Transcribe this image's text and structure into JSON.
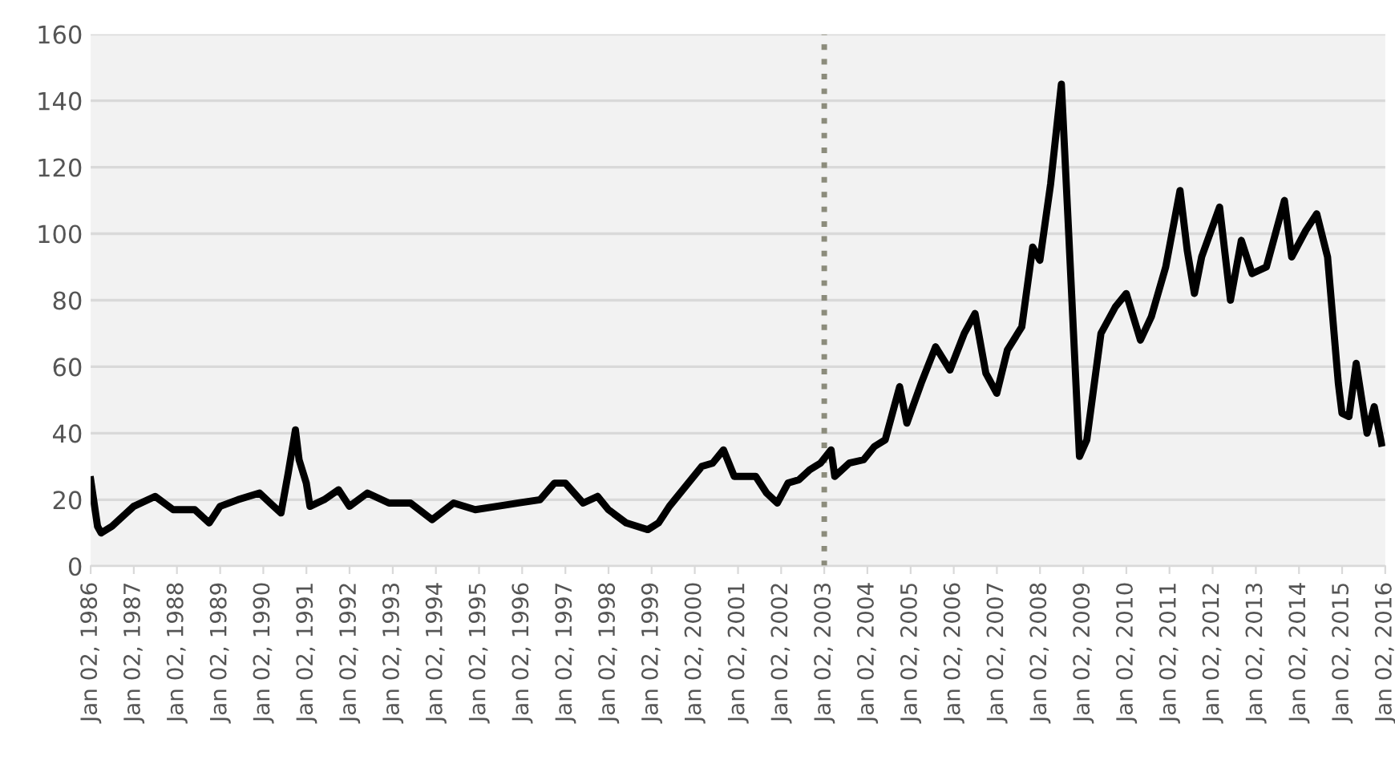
{
  "chart_data": {
    "type": "line",
    "ylim": [
      0,
      160
    ],
    "yticks": [
      0,
      20,
      40,
      60,
      80,
      100,
      120,
      140,
      160
    ],
    "xlim": [
      "1986-01-02",
      "2016-01-02"
    ],
    "xticks": [
      {
        "value": "1986-01-02",
        "label": "Jan 02, 1986"
      },
      {
        "value": "1987-01-02",
        "label": "Jan 02, 1987"
      },
      {
        "value": "1988-01-02",
        "label": "Jan 02, 1988"
      },
      {
        "value": "1989-01-02",
        "label": "Jan 02, 1989"
      },
      {
        "value": "1990-01-02",
        "label": "Jan 02, 1990"
      },
      {
        "value": "1991-01-02",
        "label": "Jan 02, 1991"
      },
      {
        "value": "1992-01-02",
        "label": "Jan 02, 1992"
      },
      {
        "value": "1993-01-02",
        "label": "Jan 02, 1993"
      },
      {
        "value": "1994-01-02",
        "label": "Jan 02, 1994"
      },
      {
        "value": "1995-01-02",
        "label": "Jan 02, 1995"
      },
      {
        "value": "1996-01-02",
        "label": "Jan 02, 1996"
      },
      {
        "value": "1997-01-02",
        "label": "Jan 02, 1997"
      },
      {
        "value": "1998-01-02",
        "label": "Jan 02, 1998"
      },
      {
        "value": "1999-01-02",
        "label": "Jan 02, 1999"
      },
      {
        "value": "2000-01-02",
        "label": "Jan 02, 2000"
      },
      {
        "value": "2001-01-02",
        "label": "Jan 02, 2001"
      },
      {
        "value": "2002-01-02",
        "label": "Jan 02, 2002"
      },
      {
        "value": "2003-01-02",
        "label": "Jan 02, 2003"
      },
      {
        "value": "2004-01-02",
        "label": "Jan 02, 2004"
      },
      {
        "value": "2005-01-02",
        "label": "Jan 02, 2005"
      },
      {
        "value": "2006-01-02",
        "label": "Jan 02, 2006"
      },
      {
        "value": "2007-01-02",
        "label": "Jan 02, 2007"
      },
      {
        "value": "2008-01-02",
        "label": "Jan 02, 2008"
      },
      {
        "value": "2009-01-02",
        "label": "Jan 02, 2009"
      },
      {
        "value": "2010-01-02",
        "label": "Jan 02, 2010"
      },
      {
        "value": "2011-01-02",
        "label": "Jan 02, 2011"
      },
      {
        "value": "2012-01-02",
        "label": "Jan 02, 2012"
      },
      {
        "value": "2013-01-02",
        "label": "Jan 02, 2013"
      },
      {
        "value": "2014-01-02",
        "label": "Jan 02, 2014"
      },
      {
        "value": "2015-01-02",
        "label": "Jan 02, 2015"
      },
      {
        "value": "2016-01-02",
        "label": "Jan 02, 2016"
      }
    ],
    "grid": "y",
    "legend": false,
    "marker": "none",
    "line_style": "solid",
    "ref_lines": [
      {
        "axis": "x",
        "value": "2003-01-02",
        "color": "#8c8c7c",
        "line_style": "dotted"
      }
    ],
    "series": [
      {
        "color": "#000000",
        "x": [
          "1986-01-02",
          "1986-03",
          "1986-04",
          "1986-07",
          "1986-10",
          "1987-01",
          "1987-07",
          "1987-12",
          "1988-06",
          "1988-10",
          "1989-01",
          "1989-06",
          "1989-12",
          "1990-03",
          "1990-06",
          "1990-08",
          "1990-10",
          "1990-11",
          "1991-01",
          "1991-02",
          "1991-06",
          "1991-10",
          "1992-01",
          "1992-06",
          "1992-12",
          "1993-06",
          "1993-12",
          "1994-06",
          "1994-12",
          "1995-06",
          "1995-12",
          "1996-06",
          "1996-10",
          "1997-01",
          "1997-06",
          "1997-10",
          "1998-01",
          "1998-06",
          "1998-12",
          "1999-03",
          "1999-06",
          "1999-12",
          "2000-03",
          "2000-06",
          "2000-09",
          "2000-12",
          "2001-03",
          "2001-06",
          "2001-09",
          "2001-12",
          "2002-03",
          "2002-06",
          "2002-09",
          "2002-12",
          "2003-03",
          "2003-04",
          "2003-08",
          "2003-12",
          "2004-03",
          "2004-06",
          "2004-10",
          "2004-12",
          "2005-04",
          "2005-08",
          "2005-12",
          "2006-04",
          "2006-07",
          "2006-10",
          "2007-01",
          "2007-04",
          "2007-08",
          "2007-11",
          "2008-01",
          "2008-04",
          "2008-07",
          "2008-09",
          "2008-12",
          "2009-02",
          "2009-06",
          "2009-10",
          "2010-01",
          "2010-05",
          "2010-08",
          "2010-12",
          "2011-04",
          "2011-06",
          "2011-08",
          "2011-10",
          "2012-03",
          "2012-06",
          "2012-09",
          "2012-12",
          "2013-04",
          "2013-09",
          "2013-11",
          "2014-03",
          "2014-06",
          "2014-09",
          "2014-12",
          "2015-01",
          "2015-03",
          "2015-05",
          "2015-08",
          "2015-10",
          "2015-12"
        ],
        "values": [
          26,
          12,
          10,
          12,
          15,
          18,
          21,
          17,
          17,
          13,
          18,
          20,
          22,
          19,
          16,
          28,
          41,
          32,
          25,
          18,
          20,
          23,
          18,
          22,
          19,
          19,
          14,
          19,
          17,
          18,
          19,
          20,
          25,
          25,
          19,
          21,
          17,
          13,
          11,
          13,
          18,
          26,
          30,
          31,
          35,
          27,
          27,
          27,
          22,
          19,
          25,
          26,
          29,
          31,
          35,
          27,
          31,
          32,
          36,
          38,
          54,
          43,
          55,
          66,
          59,
          70,
          76,
          58,
          52,
          65,
          72,
          96,
          92,
          115,
          145,
          100,
          33,
          38,
          70,
          78,
          82,
          68,
          75,
          90,
          113,
          95,
          82,
          93,
          108,
          80,
          98,
          88,
          90,
          110,
          93,
          101,
          106,
          93,
          55,
          46,
          45,
          61,
          40,
          48,
          37
        ]
      }
    ]
  }
}
